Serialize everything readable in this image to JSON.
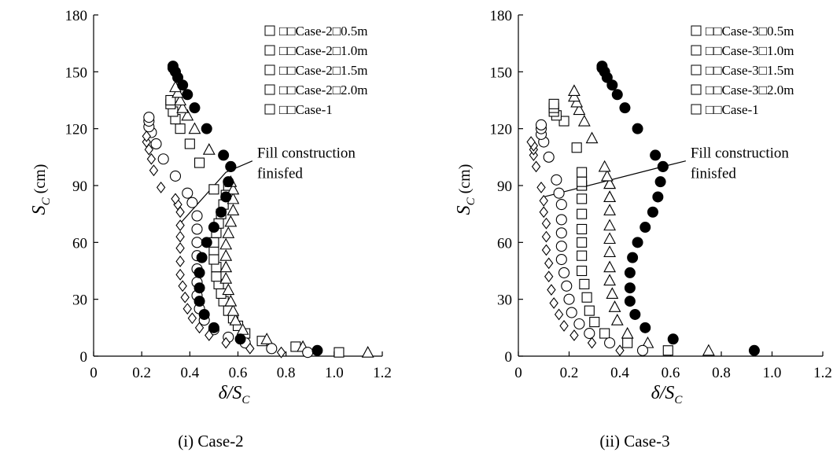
{
  "marker_styles": {
    "0.5m": "open-square",
    "1.0m": "open-triangle",
    "1.5m": "open-circle",
    "2.0m": "open-diamond",
    "Case-1": "filled-circle"
  },
  "chart_data": [
    {
      "type": "scatter",
      "caption": "(i) Case-2",
      "xlabel": "δ/S",
      "xlabel_sub": "C",
      "ylabel": "S",
      "ylabel_sub": "C",
      "ylabel_unit": " (cm)",
      "xlim": [
        0,
        1.2
      ],
      "ylim": [
        0,
        180
      ],
      "xticks": [
        "0",
        "0.2",
        "0.4",
        "0.6",
        "0.8",
        "1.0",
        "1.2"
      ],
      "yticks": [
        "0",
        "30",
        "60",
        "90",
        "120",
        "150",
        "180"
      ],
      "grid": false,
      "legend_position": "top-right",
      "annotation": {
        "lines": [
          "Fill construction",
          "finisfed"
        ],
        "line_points": [
          [
            0.36,
            70
          ],
          [
            0.55,
            97
          ],
          [
            0.66,
            103
          ]
        ]
      },
      "series": [
        {
          "name": "□□Case-2□0.5m",
          "marker": "0.5m",
          "x": [
            1.02,
            0.84,
            0.7,
            0.63,
            0.6,
            0.58,
            0.56,
            0.54,
            0.53,
            0.52,
            0.51,
            0.51,
            0.5,
            0.5,
            0.5,
            0.51,
            0.52,
            0.53,
            0.54,
            0.55,
            0.56,
            0.5,
            0.44,
            0.4,
            0.36,
            0.34,
            0.33,
            0.32,
            0.32
          ],
          "y": [
            2,
            5,
            8,
            12,
            16,
            20,
            24,
            29,
            33,
            38,
            42,
            47,
            51,
            56,
            60,
            65,
            70,
            75,
            80,
            85,
            90,
            88,
            102,
            112,
            120,
            125,
            129,
            133,
            135
          ]
        },
        {
          "name": "□□Case-2□1.0m",
          "marker": "1.0m",
          "x": [
            1.14,
            0.87,
            0.72,
            0.62,
            0.59,
            0.58,
            0.57,
            0.56,
            0.55,
            0.55,
            0.55,
            0.55,
            0.56,
            0.57,
            0.58,
            0.58,
            0.58,
            0.57,
            0.48,
            0.42,
            0.39,
            0.37,
            0.36,
            0.35,
            0.34
          ],
          "y": [
            2,
            5,
            9,
            14,
            19,
            24,
            29,
            35,
            41,
            47,
            53,
            59,
            65,
            71,
            77,
            83,
            88,
            92,
            109,
            120,
            127,
            131,
            135,
            139,
            142
          ]
        },
        {
          "name": "□□Case-2□1.5m",
          "marker": "1.5m",
          "x": [
            0.89,
            0.74,
            0.63,
            0.56,
            0.5,
            0.46,
            0.44,
            0.43,
            0.43,
            0.43,
            0.43,
            0.43,
            0.43,
            0.43,
            0.41,
            0.39,
            0.34,
            0.29,
            0.26,
            0.24,
            0.23,
            0.23,
            0.23
          ],
          "y": [
            2,
            4,
            7,
            10,
            14,
            19,
            25,
            32,
            39,
            46,
            53,
            60,
            67,
            74,
            81,
            86,
            95,
            104,
            112,
            118,
            121,
            124,
            126
          ]
        },
        {
          "name": "□□Case-2□2.0m",
          "marker": "2.0m",
          "x": [
            0.78,
            0.65,
            0.55,
            0.48,
            0.44,
            0.41,
            0.39,
            0.38,
            0.37,
            0.36,
            0.36,
            0.36,
            0.36,
            0.36,
            0.36,
            0.35,
            0.34,
            0.28,
            0.25,
            0.24,
            0.23,
            0.22,
            0.22
          ],
          "y": [
            2,
            4,
            7,
            11,
            15,
            20,
            25,
            31,
            37,
            43,
            50,
            57,
            63,
            69,
            76,
            80,
            83,
            89,
            98,
            104,
            109,
            113,
            116
          ]
        },
        {
          "name": "□□Case-1",
          "marker": "Case-1",
          "x": [
            0.93,
            0.61,
            0.5,
            0.46,
            0.44,
            0.44,
            0.44,
            0.45,
            0.47,
            0.5,
            0.53,
            0.55,
            0.56,
            0.57,
            0.57,
            0.54,
            0.47,
            0.42,
            0.39,
            0.37,
            0.35,
            0.34,
            0.33,
            0.33
          ],
          "y": [
            3,
            9,
            15,
            22,
            29,
            36,
            44,
            52,
            60,
            68,
            76,
            84,
            92,
            100,
            100,
            106,
            120,
            131,
            138,
            143,
            147,
            150,
            152,
            153
          ]
        }
      ]
    },
    {
      "type": "scatter",
      "caption": "(ii) Case-3",
      "xlabel": "δ/S",
      "xlabel_sub": "C",
      "ylabel": "S",
      "ylabel_sub": "C",
      "ylabel_unit": " (cm)",
      "xlim": [
        0,
        1.2
      ],
      "ylim": [
        0,
        180
      ],
      "xticks": [
        "0",
        "0.2",
        "0.4",
        "0.6",
        "0.8",
        "1.0",
        "1.2"
      ],
      "yticks": [
        "0",
        "30",
        "60",
        "90",
        "120",
        "150",
        "180"
      ],
      "grid": false,
      "legend_position": "top-right",
      "annotation": {
        "lines": [
          "Fill construction",
          "finisfed"
        ],
        "line_points": [
          [
            0.1,
            84
          ],
          [
            0.57,
            100
          ],
          [
            0.66,
            103
          ]
        ]
      },
      "series": [
        {
          "name": "□□Case-3□0.5m",
          "marker": "0.5m",
          "x": [
            0.59,
            0.43,
            0.34,
            0.3,
            0.28,
            0.27,
            0.26,
            0.25,
            0.25,
            0.25,
            0.25,
            0.25,
            0.25,
            0.25,
            0.25,
            0.25,
            0.25,
            0.23,
            0.18,
            0.15,
            0.14,
            0.14,
            0.14
          ],
          "y": [
            3,
            7,
            12,
            18,
            24,
            31,
            38,
            45,
            53,
            60,
            67,
            75,
            83,
            90,
            90,
            92,
            97,
            110,
            124,
            127,
            129,
            131,
            133
          ]
        },
        {
          "name": "□□Case-3□1.0m",
          "marker": "1.0m",
          "x": [
            0.75,
            0.51,
            0.43,
            0.39,
            0.38,
            0.37,
            0.36,
            0.36,
            0.36,
            0.36,
            0.36,
            0.36,
            0.36,
            0.36,
            0.36,
            0.36,
            0.35,
            0.34,
            0.29,
            0.26,
            0.24,
            0.23,
            0.22,
            0.22
          ],
          "y": [
            3,
            7,
            12,
            19,
            26,
            33,
            40,
            47,
            55,
            62,
            69,
            77,
            84,
            91,
            84,
            91,
            95,
            100,
            115,
            124,
            130,
            134,
            137,
            140
          ]
        },
        {
          "name": "□□Case-3□1.5m",
          "marker": "1.5m",
          "x": [
            0.49,
            0.36,
            0.28,
            0.24,
            0.21,
            0.2,
            0.19,
            0.18,
            0.17,
            0.17,
            0.17,
            0.17,
            0.17,
            0.16,
            0.15,
            0.12,
            0.1,
            0.09,
            0.09,
            0.09
          ],
          "y": [
            3,
            7,
            12,
            17,
            23,
            30,
            37,
            44,
            51,
            58,
            65,
            72,
            80,
            86,
            93,
            105,
            113,
            117,
            120,
            122
          ]
        },
        {
          "name": "□□Case-3□2.0m",
          "marker": "2.0m",
          "x": [
            0.4,
            0.29,
            0.22,
            0.18,
            0.16,
            0.14,
            0.13,
            0.12,
            0.12,
            0.11,
            0.11,
            0.11,
            0.1,
            0.1,
            0.09,
            0.07,
            0.06,
            0.06,
            0.06,
            0.05
          ],
          "y": [
            3,
            7,
            11,
            16,
            22,
            28,
            35,
            42,
            49,
            56,
            63,
            70,
            76,
            82,
            89,
            100,
            106,
            109,
            111,
            113
          ]
        },
        {
          "name": "□□Case-1",
          "marker": "Case-1",
          "x": [
            0.93,
            0.61,
            0.5,
            0.46,
            0.44,
            0.44,
            0.44,
            0.45,
            0.47,
            0.5,
            0.53,
            0.55,
            0.56,
            0.57,
            0.57,
            0.54,
            0.47,
            0.42,
            0.39,
            0.37,
            0.35,
            0.34,
            0.33,
            0.33
          ],
          "y": [
            3,
            9,
            15,
            22,
            29,
            36,
            44,
            52,
            60,
            68,
            76,
            84,
            92,
            100,
            100,
            106,
            120,
            131,
            138,
            143,
            147,
            150,
            152,
            153
          ]
        }
      ]
    }
  ]
}
